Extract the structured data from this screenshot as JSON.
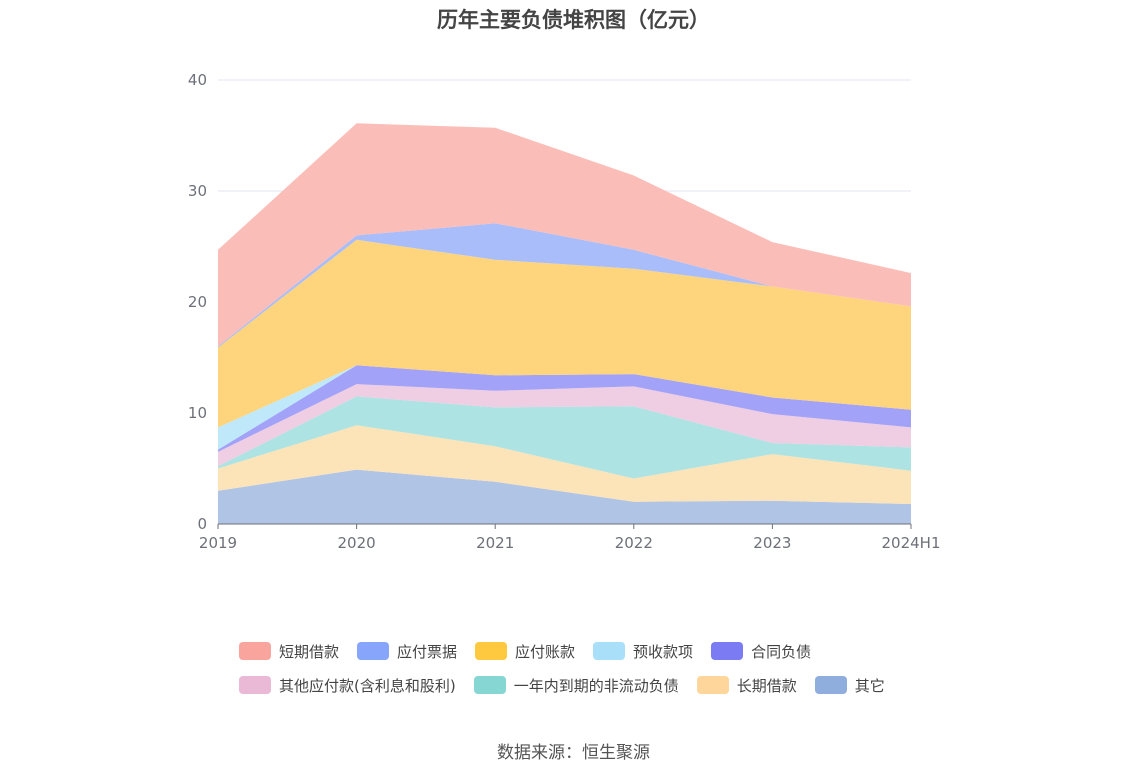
{
  "title": "历年主要负债堆积图（亿元）",
  "source": "数据来源：恒生聚源",
  "colors": {
    "短期借款": "#fbbdb7",
    "应付票据": "#a9bdfb",
    "应付账款": "#fed57c",
    "预收款项": "#bfe9fb",
    "合同负债": "#a2a2f8",
    "其他应付款(含利息和股利)": "#efcde2",
    "一年内到期的非流动负债": "#ade3e2",
    "长期借款": "#fde3b8",
    "其它": "#b0c5e5"
  },
  "legend_colors": {
    "短期借款": "#f9a49c",
    "应付票据": "#86a5fb",
    "应付账款": "#fec93f",
    "预收款项": "#aadffa",
    "合同负债": "#7b7bf4",
    "其他应付款(含利息和股利)": "#e9b9d6",
    "一年内到期的非流动负债": "#86d6d4",
    "长期借款": "#fed59a",
    "其它": "#8faedd"
  },
  "chart_data": {
    "type": "area",
    "stacked": true,
    "title": "历年主要负债堆积图（亿元）",
    "categories": [
      "2019",
      "2020",
      "2021",
      "2022",
      "2023",
      "2024H1"
    ],
    "ylim": [
      0,
      40
    ],
    "yticks": [
      0,
      10,
      20,
      30,
      40
    ],
    "grid": true,
    "legend_position": "bottom",
    "series": [
      {
        "name": "其它",
        "values": [
          3.0,
          4.9,
          3.8,
          2.0,
          2.1,
          1.8
        ]
      },
      {
        "name": "长期借款",
        "values": [
          2.0,
          4.0,
          3.2,
          2.1,
          4.2,
          3.0
        ]
      },
      {
        "name": "一年内到期的非流动负债",
        "values": [
          0.2,
          2.6,
          3.5,
          6.5,
          1.0,
          2.1
        ]
      },
      {
        "name": "其他应付款(含利息和股利)",
        "values": [
          1.3,
          1.1,
          1.5,
          1.8,
          2.6,
          1.8
        ]
      },
      {
        "name": "合同负债",
        "values": [
          0.2,
          1.7,
          1.4,
          1.1,
          1.5,
          1.6
        ]
      },
      {
        "name": "预收款项",
        "values": [
          2.0,
          0.0,
          0.0,
          0.0,
          0.0,
          0.0
        ]
      },
      {
        "name": "应付账款",
        "values": [
          7.2,
          11.3,
          10.4,
          9.5,
          10.0,
          9.3
        ]
      },
      {
        "name": "应付票据",
        "values": [
          0.1,
          0.4,
          3.3,
          1.7,
          0.0,
          0.0
        ]
      },
      {
        "name": "短期借款",
        "values": [
          8.7,
          10.1,
          8.6,
          6.7,
          4.0,
          3.0
        ]
      }
    ]
  },
  "legend": {
    "rows": [
      [
        "短期借款",
        "应付票据",
        "应付账款",
        "预收款项",
        "合同负债"
      ],
      [
        "其他应付款(含利息和股利)",
        "一年内到期的非流动负债",
        "长期借款",
        "其它"
      ]
    ]
  }
}
